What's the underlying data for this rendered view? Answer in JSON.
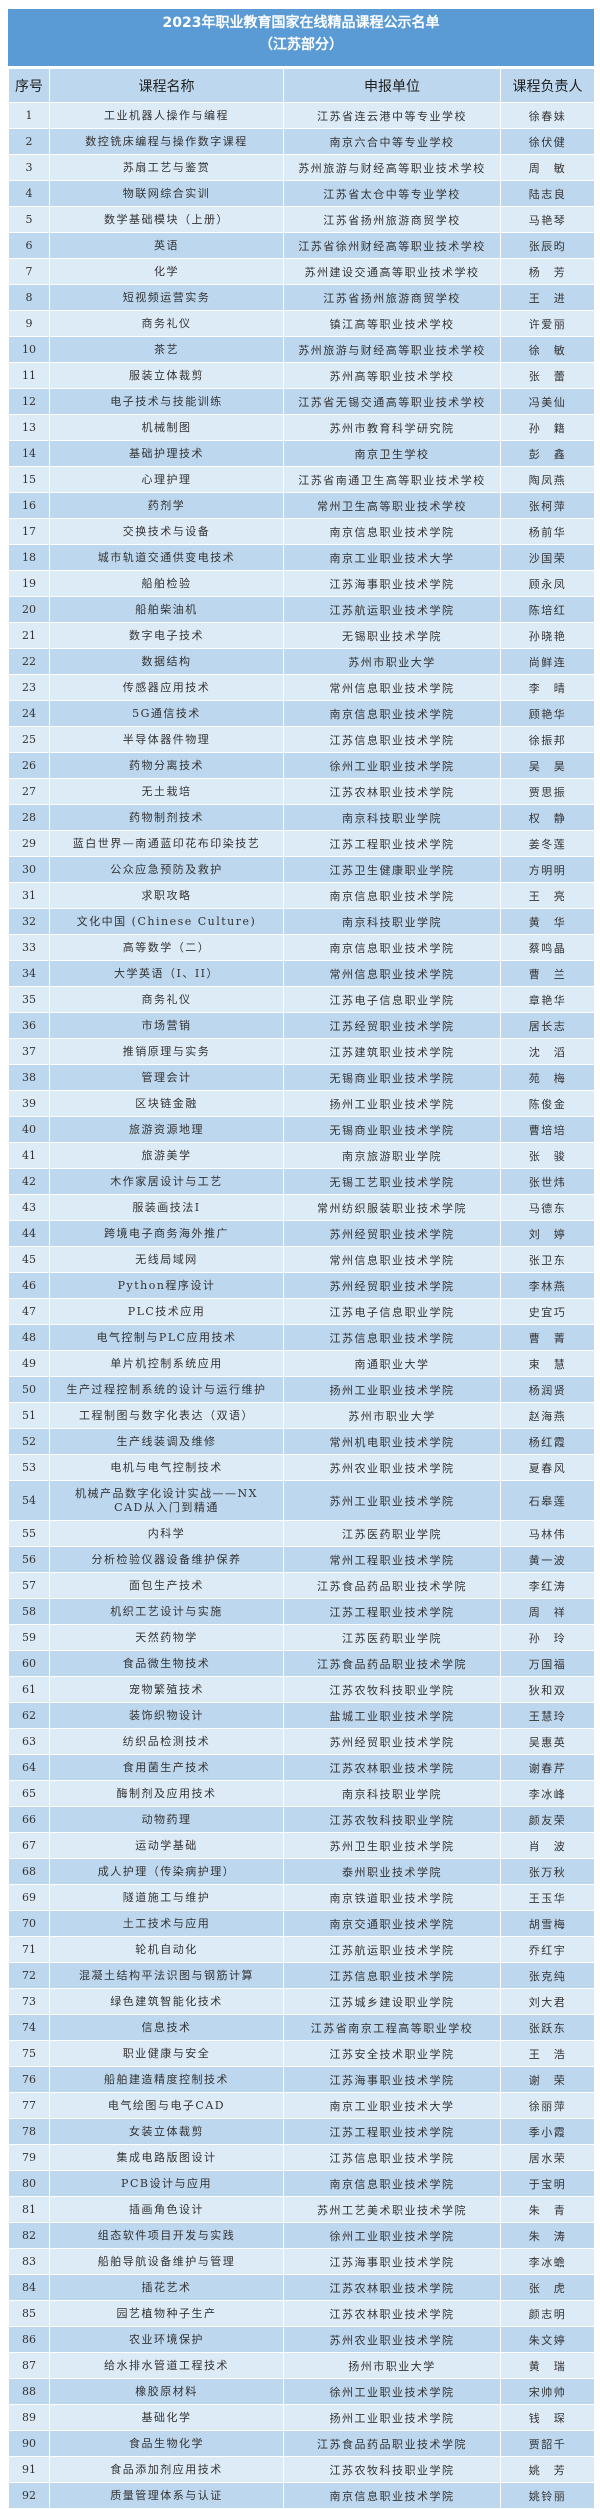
{
  "title": {
    "line1": "2023年职业教育国家在线精品课程公示名单",
    "line2": "（江苏部分）"
  },
  "colors": {
    "title_bg": "#5b9bd5",
    "header_bg": "#bdd7ee",
    "row_light": "#ddebf7",
    "row_dark": "#bdd7ee"
  },
  "headers": {
    "seq": "序号",
    "course": "课程名称",
    "unit": "申报单位",
    "lead": "课程负责人"
  },
  "rows": [
    {
      "seq": "1",
      "course": "工业机器人操作与编程",
      "unit": "江苏省连云港中等专业学校",
      "lead": "徐春妹"
    },
    {
      "seq": "2",
      "course": "数控铣床编程与操作数字课程",
      "unit": "南京六合中等专业学校",
      "lead": "徐伏健"
    },
    {
      "seq": "3",
      "course": "苏扇工艺与鉴赏",
      "unit": "苏州旅游与财经高等职业技术学校",
      "lead": "周　敏"
    },
    {
      "seq": "4",
      "course": "物联网综合实训",
      "unit": "江苏省太仓中等专业学校",
      "lead": "陆志良"
    },
    {
      "seq": "5",
      "course": "数学基础模块（上册）",
      "unit": "江苏省扬州旅游商贸学校",
      "lead": "马艳琴"
    },
    {
      "seq": "6",
      "course": "英语",
      "unit": "江苏省徐州财经高等职业技术学校",
      "lead": "张辰昀"
    },
    {
      "seq": "7",
      "course": "化学",
      "unit": "苏州建设交通高等职业技术学校",
      "lead": "杨　芳"
    },
    {
      "seq": "8",
      "course": "短视频运营实务",
      "unit": "江苏省扬州旅游商贸学校",
      "lead": "王　进"
    },
    {
      "seq": "9",
      "course": "商务礼仪",
      "unit": "镇江高等职业技术学校",
      "lead": "许爱丽"
    },
    {
      "seq": "10",
      "course": "茶艺",
      "unit": "苏州旅游与财经高等职业技术学校",
      "lead": "徐　敏"
    },
    {
      "seq": "11",
      "course": "服装立体裁剪",
      "unit": "苏州高等职业技术学校",
      "lead": "张　蕾"
    },
    {
      "seq": "12",
      "course": "电子技术与技能训练",
      "unit": "江苏省无锡交通高等职业技术学校",
      "lead": "冯美仙"
    },
    {
      "seq": "13",
      "course": "机械制图",
      "unit": "苏州市教育科学研究院",
      "lead": "孙　籍"
    },
    {
      "seq": "14",
      "course": "基础护理技术",
      "unit": "南京卫生学校",
      "lead": "彭　鑫"
    },
    {
      "seq": "15",
      "course": "心理护理",
      "unit": "江苏省南通卫生高等职业技术学校",
      "lead": "陶凤燕"
    },
    {
      "seq": "16",
      "course": "药剂学",
      "unit": "常州卫生高等职业技术学校",
      "lead": "张柯萍"
    },
    {
      "seq": "17",
      "course": "交换技术与设备",
      "unit": "南京信息职业技术学院",
      "lead": "杨前华"
    },
    {
      "seq": "18",
      "course": "城市轨道交通供变电技术",
      "unit": "南京工业职业技术大学",
      "lead": "沙国荣"
    },
    {
      "seq": "19",
      "course": "船舶检验",
      "unit": "江苏海事职业技术学院",
      "lead": "顾永凤"
    },
    {
      "seq": "20",
      "course": "船舶柴油机",
      "unit": "江苏航运职业技术学院",
      "lead": "陈培红"
    },
    {
      "seq": "21",
      "course": "数字电子技术",
      "unit": "无锡职业技术学院",
      "lead": "孙晓艳"
    },
    {
      "seq": "22",
      "course": "数据结构",
      "unit": "苏州市职业大学",
      "lead": "尚鲜连"
    },
    {
      "seq": "23",
      "course": "传感器应用技术",
      "unit": "常州信息职业技术学院",
      "lead": "李　晴"
    },
    {
      "seq": "24",
      "course": "5G通信技术",
      "unit": "南京信息职业技术学院",
      "lead": "顾艳华"
    },
    {
      "seq": "25",
      "course": "半导体器件物理",
      "unit": "江苏信息职业技术学院",
      "lead": "徐振邦"
    },
    {
      "seq": "26",
      "course": "药物分离技术",
      "unit": "徐州工业职业技术学院",
      "lead": "吴　昊"
    },
    {
      "seq": "27",
      "course": "无土栽培",
      "unit": "江苏农林职业技术学院",
      "lead": "贾思振"
    },
    {
      "seq": "28",
      "course": "药物制剂技术",
      "unit": "南京科技职业学院",
      "lead": "权　静"
    },
    {
      "seq": "29",
      "course": "蓝白世界—南通蓝印花布印染技艺",
      "unit": "江苏工程职业技术学院",
      "lead": "姜冬莲"
    },
    {
      "seq": "30",
      "course": "公众应急预防及救护",
      "unit": "江苏卫生健康职业学院",
      "lead": "方明明"
    },
    {
      "seq": "31",
      "course": "求职攻略",
      "unit": "南京信息职业技术学院",
      "lead": "王　亮"
    },
    {
      "seq": "32",
      "course": "文化中国 (Chinese Culture)",
      "unit": "南京科技职业学院",
      "lead": "黄　华"
    },
    {
      "seq": "33",
      "course": "高等数学（二）",
      "unit": "南京信息职业技术学院",
      "lead": "蔡鸣晶"
    },
    {
      "seq": "34",
      "course": "大学英语（I、II）",
      "unit": "常州信息职业技术学院",
      "lead": "曹　兰"
    },
    {
      "seq": "35",
      "course": "商务礼仪",
      "unit": "江苏电子信息职业学院",
      "lead": "章艳华"
    },
    {
      "seq": "36",
      "course": "市场营销",
      "unit": "江苏经贸职业技术学院",
      "lead": "居长志"
    },
    {
      "seq": "37",
      "course": "推销原理与实务",
      "unit": "江苏建筑职业技术学院",
      "lead": "沈　滔"
    },
    {
      "seq": "38",
      "course": "管理会计",
      "unit": "无锡商业职业技术学院",
      "lead": "苑　梅"
    },
    {
      "seq": "39",
      "course": "区块链金融",
      "unit": "扬州工业职业技术学院",
      "lead": "陈俊金"
    },
    {
      "seq": "40",
      "course": "旅游资源地理",
      "unit": "无锡商业职业技术学院",
      "lead": "曹培培"
    },
    {
      "seq": "41",
      "course": "旅游美学",
      "unit": "南京旅游职业学院",
      "lead": "张　骏"
    },
    {
      "seq": "42",
      "course": "木作家居设计与工艺",
      "unit": "无锡工艺职业技术学院",
      "lead": "张世炜"
    },
    {
      "seq": "43",
      "course": "服装画技法I",
      "unit": "常州纺织服装职业技术学院",
      "lead": "马德东"
    },
    {
      "seq": "44",
      "course": "跨境电子商务海外推广",
      "unit": "苏州经贸职业技术学院",
      "lead": "刘　婷"
    },
    {
      "seq": "45",
      "course": "无线局域网",
      "unit": "常州信息职业技术学院",
      "lead": "张卫东"
    },
    {
      "seq": "46",
      "course": "Python程序设计",
      "unit": "苏州经贸职业技术学院",
      "lead": "李林燕"
    },
    {
      "seq": "47",
      "course": "PLC技术应用",
      "unit": "江苏电子信息职业学院",
      "lead": "史宜巧"
    },
    {
      "seq": "48",
      "course": "电气控制与PLC应用技术",
      "unit": "江苏信息职业技术学院",
      "lead": "曹　菁"
    },
    {
      "seq": "49",
      "course": "单片机控制系统应用",
      "unit": "南通职业大学",
      "lead": "束　慧"
    },
    {
      "seq": "50",
      "course": "生产过程控制系统的设计与运行维护",
      "unit": "扬州工业职业技术学院",
      "lead": "杨润贤"
    },
    {
      "seq": "51",
      "course": "工程制图与数字化表达（双语）",
      "unit": "苏州市职业大学",
      "lead": "赵海燕"
    },
    {
      "seq": "52",
      "course": "生产线装调及维修",
      "unit": "常州机电职业技术学院",
      "lead": "杨红霞"
    },
    {
      "seq": "53",
      "course": "电机与电气控制技术",
      "unit": "苏州农业职业技术学院",
      "lead": "夏春风"
    },
    {
      "seq": "54",
      "course": "机械产品数字化设计实战——NX CAD从入门到精通",
      "unit": "苏州工业职业技术学院",
      "lead": "石皋莲"
    },
    {
      "seq": "55",
      "course": "内科学",
      "unit": "江苏医药职业学院",
      "lead": "马林伟"
    },
    {
      "seq": "56",
      "course": "分析检验仪器设备维护保养",
      "unit": "常州工程职业技术学院",
      "lead": "黄一波"
    },
    {
      "seq": "57",
      "course": "面包生产技术",
      "unit": "江苏食品药品职业技术学院",
      "lead": "李红涛"
    },
    {
      "seq": "58",
      "course": "机织工艺设计与实施",
      "unit": "江苏工程职业技术学院",
      "lead": "周　祥"
    },
    {
      "seq": "59",
      "course": "天然药物学",
      "unit": "江苏医药职业学院",
      "lead": "孙　玲"
    },
    {
      "seq": "60",
      "course": "食品微生物技术",
      "unit": "江苏食品药品职业技术学院",
      "lead": "万国福"
    },
    {
      "seq": "61",
      "course": "宠物繁殖技术",
      "unit": "江苏农牧科技职业学院",
      "lead": "狄和双"
    },
    {
      "seq": "62",
      "course": "装饰织物设计",
      "unit": "盐城工业职业技术学院",
      "lead": "王慧玲"
    },
    {
      "seq": "63",
      "course": "纺织品检测技术",
      "unit": "苏州经贸职业技术学院",
      "lead": "吴惠英"
    },
    {
      "seq": "64",
      "course": "食用菌生产技术",
      "unit": "江苏农林职业技术学院",
      "lead": "谢春芹"
    },
    {
      "seq": "65",
      "course": "酶制剂及应用技术",
      "unit": "南京科技职业学院",
      "lead": "李冰峰"
    },
    {
      "seq": "66",
      "course": "动物药理",
      "unit": "江苏农牧科技职业学院",
      "lead": "颜友荣"
    },
    {
      "seq": "67",
      "course": "运动学基础",
      "unit": "苏州卫生职业技术学院",
      "lead": "肖　波"
    },
    {
      "seq": "68",
      "course": "成人护理（传染病护理）",
      "unit": "泰州职业技术学院",
      "lead": "张万秋"
    },
    {
      "seq": "69",
      "course": "隧道施工与维护",
      "unit": "南京铁道职业技术学院",
      "lead": "王玉华"
    },
    {
      "seq": "70",
      "course": "土工技术与应用",
      "unit": "南京交通职业技术学院",
      "lead": "胡雪梅"
    },
    {
      "seq": "71",
      "course": "轮机自动化",
      "unit": "江苏航运职业技术学院",
      "lead": "乔红宇"
    },
    {
      "seq": "72",
      "course": "混凝土结构平法识图与钢筋计算",
      "unit": "江苏信息职业技术学院",
      "lead": "张克纯"
    },
    {
      "seq": "73",
      "course": "绿色建筑智能化技术",
      "unit": "江苏城乡建设职业学院",
      "lead": "刘大君"
    },
    {
      "seq": "74",
      "course": "信息技术",
      "unit": "江苏省南京工程高等职业学校",
      "lead": "张跃东"
    },
    {
      "seq": "75",
      "course": "职业健康与安全",
      "unit": "江苏安全技术职业学院",
      "lead": "王　浩"
    },
    {
      "seq": "76",
      "course": "船舶建造精度控制技术",
      "unit": "江苏海事职业技术学院",
      "lead": "谢　荣"
    },
    {
      "seq": "77",
      "course": "电气绘图与电子CAD",
      "unit": "南京工业职业技术大学",
      "lead": "徐丽萍"
    },
    {
      "seq": "78",
      "course": "女装立体裁剪",
      "unit": "江苏工程职业技术学院",
      "lead": "季小霞"
    },
    {
      "seq": "79",
      "course": "集成电路版图设计",
      "unit": "江苏信息职业技术学院",
      "lead": "居水荣"
    },
    {
      "seq": "80",
      "course": "PCB设计与应用",
      "unit": "南京信息职业技术学院",
      "lead": "于宝明"
    },
    {
      "seq": "81",
      "course": "插画角色设计",
      "unit": "苏州工艺美术职业技术学院",
      "lead": "朱　青"
    },
    {
      "seq": "82",
      "course": "组态软件项目开发与实践",
      "unit": "徐州工业职业技术学院",
      "lead": "朱　涛"
    },
    {
      "seq": "83",
      "course": "船舶导航设备维护与管理",
      "unit": "江苏海事职业技术学院",
      "lead": "李冰蟾"
    },
    {
      "seq": "84",
      "course": "插花艺术",
      "unit": "江苏农林职业技术学院",
      "lead": "张　虎"
    },
    {
      "seq": "85",
      "course": "园艺植物种子生产",
      "unit": "江苏农林职业技术学院",
      "lead": "颜志明"
    },
    {
      "seq": "86",
      "course": "农业环境保护",
      "unit": "苏州农业职业技术学院",
      "lead": "朱文婷"
    },
    {
      "seq": "87",
      "course": "给水排水管道工程技术",
      "unit": "扬州市职业大学",
      "lead": "黄　瑞"
    },
    {
      "seq": "88",
      "course": "橡胶原材料",
      "unit": "徐州工业职业技术学院",
      "lead": "宋帅帅"
    },
    {
      "seq": "89",
      "course": "基础化学",
      "unit": "扬州工业职业技术学院",
      "lead": "钱　琛"
    },
    {
      "seq": "90",
      "course": "食品生物化学",
      "unit": "江苏食品药品职业技术学院",
      "lead": "贾韶千"
    },
    {
      "seq": "91",
      "course": "食品添加剂应用技术",
      "unit": "江苏农牧科技职业学院",
      "lead": "姚　芳"
    },
    {
      "seq": "92",
      "course": "质量管理体系与认证",
      "unit": "南京信息职业技术学院",
      "lead": "姚铃丽"
    }
  ]
}
